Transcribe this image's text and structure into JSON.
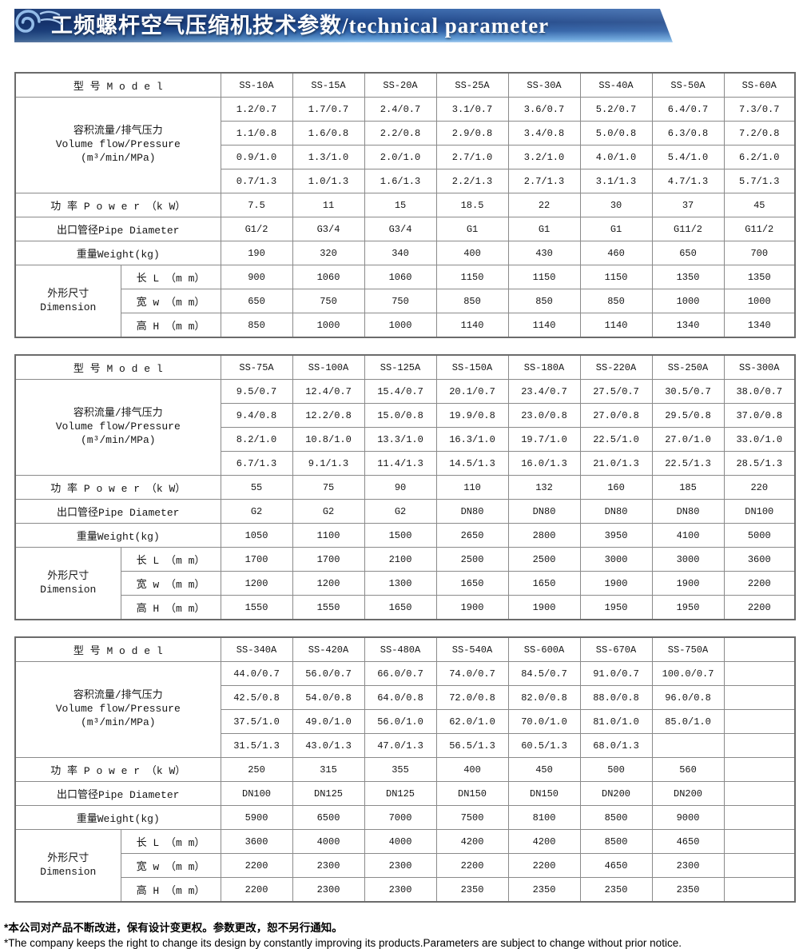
{
  "title": "工频螺杆空气压缩机技术参数/technical parameter",
  "colors": {
    "banner_dark": "#1e4689",
    "banner_light": "#66a3db",
    "cloud_icon": "#93bce8",
    "table_border": "#8a8a8a",
    "text": "#151515"
  },
  "labels": {
    "model": "型 号 M o d e l",
    "flow_cn": "容积流量/排气压力",
    "flow_en": "Volume flow/Pressure",
    "flow_unit": "(m³/min/MPa)",
    "power": "功 率 P o w e r （k W）",
    "pipe": "出口管径Pipe Diameter",
    "weight": "重量Weight(kg)",
    "dimension_cn": "外形尺寸",
    "dimension_en": "Dimension",
    "length": "长 L （m m）",
    "width": "宽 w （m m）",
    "height": "高 H （m m）"
  },
  "tables": [
    {
      "models": [
        "SS-10A",
        "SS-15A",
        "SS-20A",
        "SS-25A",
        "SS-30A",
        "SS-40A",
        "SS-50A",
        "SS-60A"
      ],
      "flow_rows": [
        [
          "1.2/0.7",
          "1.7/0.7",
          "2.4/0.7",
          "3.1/0.7",
          "3.6/0.7",
          "5.2/0.7",
          "6.4/0.7",
          "7.3/0.7"
        ],
        [
          "1.1/0.8",
          "1.6/0.8",
          "2.2/0.8",
          "2.9/0.8",
          "3.4/0.8",
          "5.0/0.8",
          "6.3/0.8",
          "7.2/0.8"
        ],
        [
          "0.9/1.0",
          "1.3/1.0",
          "2.0/1.0",
          "2.7/1.0",
          "3.2/1.0",
          "4.0/1.0",
          "5.4/1.0",
          "6.2/1.0"
        ],
        [
          "0.7/1.3",
          "1.0/1.3",
          "1.6/1.3",
          "2.2/1.3",
          "2.7/1.3",
          "3.1/1.3",
          "4.7/1.3",
          "5.7/1.3"
        ]
      ],
      "power": [
        "7.5",
        "11",
        "15",
        "18.5",
        "22",
        "30",
        "37",
        "45"
      ],
      "pipe": [
        "G1/2",
        "G3/4",
        "G3/4",
        "G1",
        "G1",
        "G1",
        "G11/2",
        "G11/2"
      ],
      "weight": [
        "190",
        "320",
        "340",
        "400",
        "430",
        "460",
        "650",
        "700"
      ],
      "length": [
        "900",
        "1060",
        "1060",
        "1150",
        "1150",
        "1150",
        "1350",
        "1350"
      ],
      "width": [
        "650",
        "750",
        "750",
        "850",
        "850",
        "850",
        "1000",
        "1000"
      ],
      "height": [
        "850",
        "1000",
        "1000",
        "1140",
        "1140",
        "1140",
        "1340",
        "1340"
      ]
    },
    {
      "models": [
        "SS-75A",
        "SS-100A",
        "SS-125A",
        "SS-150A",
        "SS-180A",
        "SS-220A",
        "SS-250A",
        "SS-300A"
      ],
      "flow_rows": [
        [
          "9.5/0.7",
          "12.4/0.7",
          "15.4/0.7",
          "20.1/0.7",
          "23.4/0.7",
          "27.5/0.7",
          "30.5/0.7",
          "38.0/0.7"
        ],
        [
          "9.4/0.8",
          "12.2/0.8",
          "15.0/0.8",
          "19.9/0.8",
          "23.0/0.8",
          "27.0/0.8",
          "29.5/0.8",
          "37.0/0.8"
        ],
        [
          "8.2/1.0",
          "10.8/1.0",
          "13.3/1.0",
          "16.3/1.0",
          "19.7/1.0",
          "22.5/1.0",
          "27.0/1.0",
          "33.0/1.0"
        ],
        [
          "6.7/1.3",
          "9.1/1.3",
          "11.4/1.3",
          "14.5/1.3",
          "16.0/1.3",
          "21.0/1.3",
          "22.5/1.3",
          "28.5/1.3"
        ]
      ],
      "power": [
        "55",
        "75",
        "90",
        "110",
        "132",
        "160",
        "185",
        "220"
      ],
      "pipe": [
        "G2",
        "G2",
        "G2",
        "DN80",
        "DN80",
        "DN80",
        "DN80",
        "DN100"
      ],
      "weight": [
        "1050",
        "1100",
        "1500",
        "2650",
        "2800",
        "3950",
        "4100",
        "5000"
      ],
      "length": [
        "1700",
        "1700",
        "2100",
        "2500",
        "2500",
        "3000",
        "3000",
        "3600"
      ],
      "width": [
        "1200",
        "1200",
        "1300",
        "1650",
        "1650",
        "1900",
        "1900",
        "2200"
      ],
      "height": [
        "1550",
        "1550",
        "1650",
        "1900",
        "1900",
        "1950",
        "1950",
        "2200"
      ]
    },
    {
      "models": [
        "SS-340A",
        "SS-420A",
        "SS-480A",
        "SS-540A",
        "SS-600A",
        "SS-670A",
        "SS-750A",
        ""
      ],
      "flow_rows": [
        [
          "44.0/0.7",
          "56.0/0.7",
          "66.0/0.7",
          "74.0/0.7",
          "84.5/0.7",
          "91.0/0.7",
          "100.0/0.7",
          ""
        ],
        [
          "42.5/0.8",
          "54.0/0.8",
          "64.0/0.8",
          "72.0/0.8",
          "82.0/0.8",
          "88.0/0.8",
          "96.0/0.8",
          ""
        ],
        [
          "37.5/1.0",
          "49.0/1.0",
          "56.0/1.0",
          "62.0/1.0",
          "70.0/1.0",
          "81.0/1.0",
          "85.0/1.0",
          ""
        ],
        [
          "31.5/1.3",
          "43.0/1.3",
          "47.0/1.3",
          "56.5/1.3",
          "60.5/1.3",
          "68.0/1.3",
          "",
          ""
        ]
      ],
      "power": [
        "250",
        "315",
        "355",
        "400",
        "450",
        "500",
        "560",
        ""
      ],
      "pipe": [
        "DN100",
        "DN125",
        "DN125",
        "DN150",
        "DN150",
        "DN200",
        "DN200",
        ""
      ],
      "weight": [
        "5900",
        "6500",
        "7000",
        "7500",
        "8100",
        "8500",
        "9000",
        ""
      ],
      "length": [
        "3600",
        "4000",
        "4000",
        "4200",
        "4200",
        "8500",
        "4650",
        ""
      ],
      "width": [
        "2200",
        "2300",
        "2300",
        "2200",
        "2200",
        "4650",
        "2300",
        ""
      ],
      "height": [
        "2200",
        "2300",
        "2300",
        "2350",
        "2350",
        "2350",
        "2350",
        ""
      ]
    }
  ],
  "footnotes": {
    "cn": "*本公司对产品不断改进，保有设计变更权。参数更改，恕不另行通知。",
    "en": "*The company keeps the right to change its design by constantly improving its products.Parameters are subject to change without prior notice."
  }
}
